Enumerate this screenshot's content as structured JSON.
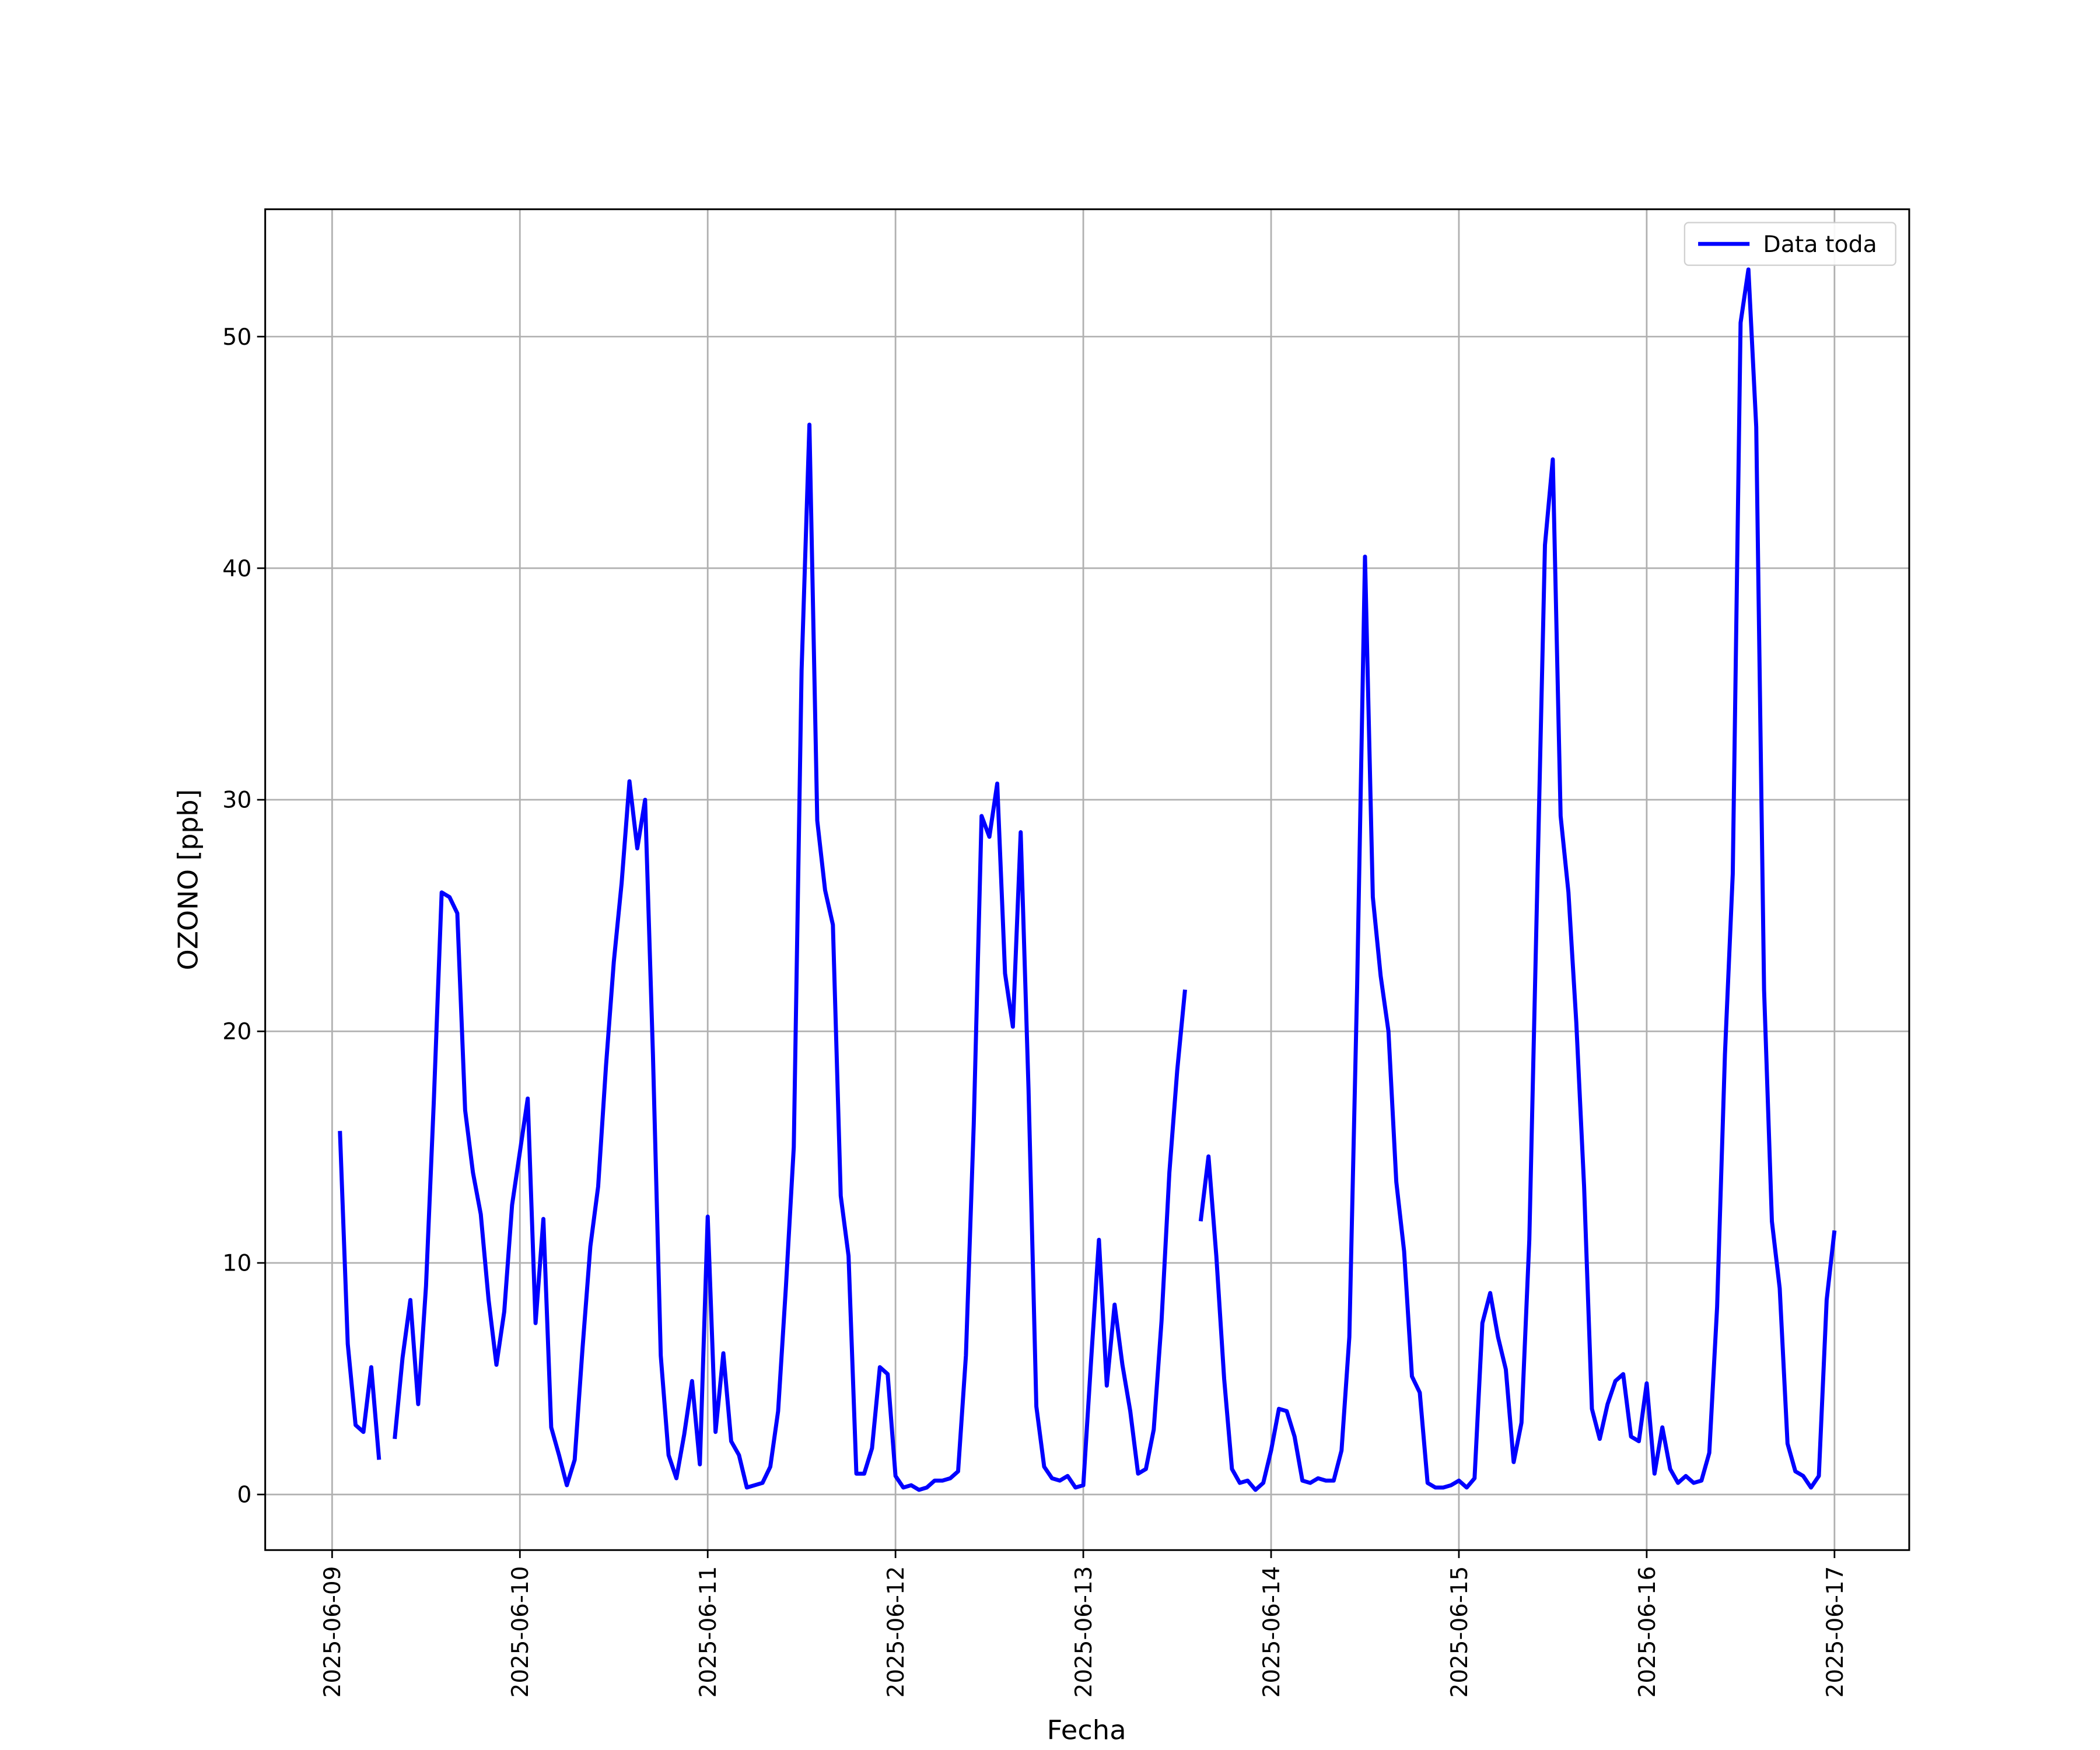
{
  "chart_data": {
    "type": "line",
    "xlabel": "Fecha",
    "ylabel": "OZONO [ppb]",
    "legend": "upper right",
    "grid": true,
    "xlim": [
      "2025-06-08 15:27",
      "2025-06-17 09:33"
    ],
    "xticks": [
      "2025-06-09",
      "2025-06-10",
      "2025-06-11",
      "2025-06-12",
      "2025-06-13",
      "2025-06-14",
      "2025-06-15",
      "2025-06-16",
      "2025-06-17"
    ],
    "ylim": [
      -2.4,
      55.5
    ],
    "yticks": [
      0,
      10,
      20,
      30,
      40,
      50
    ],
    "x": [
      "2025-06-09 01:00",
      "2025-06-09 02:00",
      "2025-06-09 03:00",
      "2025-06-09 04:00",
      "2025-06-09 05:00",
      "2025-06-09 06:00",
      "2025-06-09 07:00",
      "2025-06-09 08:00",
      "2025-06-09 09:00",
      "2025-06-09 10:00",
      "2025-06-09 11:00",
      "2025-06-09 12:00",
      "2025-06-09 13:00",
      "2025-06-09 14:00",
      "2025-06-09 15:00",
      "2025-06-09 16:00",
      "2025-06-09 17:00",
      "2025-06-09 18:00",
      "2025-06-09 19:00",
      "2025-06-09 20:00",
      "2025-06-09 21:00",
      "2025-06-09 22:00",
      "2025-06-09 23:00",
      "2025-06-10 00:00",
      "2025-06-10 01:00",
      "2025-06-10 02:00",
      "2025-06-10 03:00",
      "2025-06-10 04:00",
      "2025-06-10 05:00",
      "2025-06-10 06:00",
      "2025-06-10 07:00",
      "2025-06-10 08:00",
      "2025-06-10 09:00",
      "2025-06-10 10:00",
      "2025-06-10 11:00",
      "2025-06-10 12:00",
      "2025-06-10 13:00",
      "2025-06-10 14:00",
      "2025-06-10 15:00",
      "2025-06-10 16:00",
      "2025-06-10 17:00",
      "2025-06-10 18:00",
      "2025-06-10 19:00",
      "2025-06-10 20:00",
      "2025-06-10 21:00",
      "2025-06-10 22:00",
      "2025-06-10 23:00",
      "2025-06-11 00:00",
      "2025-06-11 01:00",
      "2025-06-11 02:00",
      "2025-06-11 03:00",
      "2025-06-11 04:00",
      "2025-06-11 05:00",
      "2025-06-11 06:00",
      "2025-06-11 07:00",
      "2025-06-11 08:00",
      "2025-06-11 09:00",
      "2025-06-11 10:00",
      "2025-06-11 11:00",
      "2025-06-11 12:00",
      "2025-06-11 13:00",
      "2025-06-11 14:00",
      "2025-06-11 15:00",
      "2025-06-11 16:00",
      "2025-06-11 17:00",
      "2025-06-11 18:00",
      "2025-06-11 19:00",
      "2025-06-11 20:00",
      "2025-06-11 21:00",
      "2025-06-11 22:00",
      "2025-06-11 23:00",
      "2025-06-12 00:00",
      "2025-06-12 01:00",
      "2025-06-12 02:00",
      "2025-06-12 03:00",
      "2025-06-12 04:00",
      "2025-06-12 05:00",
      "2025-06-12 06:00",
      "2025-06-12 07:00",
      "2025-06-12 08:00",
      "2025-06-12 09:00",
      "2025-06-12 10:00",
      "2025-06-12 11:00",
      "2025-06-12 12:00",
      "2025-06-12 13:00",
      "2025-06-12 14:00",
      "2025-06-12 15:00",
      "2025-06-12 16:00",
      "2025-06-12 17:00",
      "2025-06-12 18:00",
      "2025-06-12 19:00",
      "2025-06-12 20:00",
      "2025-06-12 21:00",
      "2025-06-12 22:00",
      "2025-06-12 23:00",
      "2025-06-13 00:00",
      "2025-06-13 01:00",
      "2025-06-13 02:00",
      "2025-06-13 03:00",
      "2025-06-13 04:00",
      "2025-06-13 05:00",
      "2025-06-13 06:00",
      "2025-06-13 07:00",
      "2025-06-13 08:00",
      "2025-06-13 09:00",
      "2025-06-13 10:00",
      "2025-06-13 11:00",
      "2025-06-13 12:00",
      "2025-06-13 13:00",
      "2025-06-13 14:00",
      "2025-06-13 15:00",
      "2025-06-13 16:00",
      "2025-06-13 17:00",
      "2025-06-13 18:00",
      "2025-06-13 19:00",
      "2025-06-13 20:00",
      "2025-06-13 21:00",
      "2025-06-13 22:00",
      "2025-06-13 23:00",
      "2025-06-14 00:00",
      "2025-06-14 01:00",
      "2025-06-14 02:00",
      "2025-06-14 03:00",
      "2025-06-14 04:00",
      "2025-06-14 05:00",
      "2025-06-14 06:00",
      "2025-06-14 07:00",
      "2025-06-14 08:00",
      "2025-06-14 09:00",
      "2025-06-14 10:00",
      "2025-06-14 11:00",
      "2025-06-14 12:00",
      "2025-06-14 13:00",
      "2025-06-14 14:00",
      "2025-06-14 15:00",
      "2025-06-14 16:00",
      "2025-06-14 17:00",
      "2025-06-14 18:00",
      "2025-06-14 19:00",
      "2025-06-14 20:00",
      "2025-06-14 21:00",
      "2025-06-14 22:00",
      "2025-06-14 23:00",
      "2025-06-15 00:00",
      "2025-06-15 01:00",
      "2025-06-15 02:00",
      "2025-06-15 03:00",
      "2025-06-15 04:00",
      "2025-06-15 05:00",
      "2025-06-15 06:00",
      "2025-06-15 07:00",
      "2025-06-15 08:00",
      "2025-06-15 09:00",
      "2025-06-15 10:00",
      "2025-06-15 11:00",
      "2025-06-15 12:00",
      "2025-06-15 13:00",
      "2025-06-15 14:00",
      "2025-06-15 15:00",
      "2025-06-15 16:00",
      "2025-06-15 17:00",
      "2025-06-15 18:00",
      "2025-06-15 19:00",
      "2025-06-15 20:00",
      "2025-06-15 21:00",
      "2025-06-15 22:00",
      "2025-06-15 23:00",
      "2025-06-16 00:00",
      "2025-06-16 01:00",
      "2025-06-16 02:00",
      "2025-06-16 03:00",
      "2025-06-16 04:00",
      "2025-06-16 05:00",
      "2025-06-16 06:00",
      "2025-06-16 07:00",
      "2025-06-16 08:00",
      "2025-06-16 09:00",
      "2025-06-16 10:00",
      "2025-06-16 11:00",
      "2025-06-16 12:00",
      "2025-06-16 13:00",
      "2025-06-16 14:00",
      "2025-06-16 15:00",
      "2025-06-16 16:00",
      "2025-06-16 17:00",
      "2025-06-16 18:00",
      "2025-06-16 19:00",
      "2025-06-16 20:00",
      "2025-06-16 21:00",
      "2025-06-16 22:00",
      "2025-06-16 23:00",
      "2025-06-17 00:00"
    ],
    "series": [
      {
        "name": "Data toda",
        "color": "#0000ff",
        "values": [
          15.7,
          6.5,
          3.0,
          2.7,
          5.5,
          1.5,
          null,
          2.4,
          5.9,
          8.4,
          3.9,
          9.0,
          17.0,
          26.0,
          25.8,
          25.1,
          16.6,
          13.9,
          12.1,
          8.4,
          5.6,
          7.9,
          12.5,
          14.8,
          17.1,
          7.4,
          11.9,
          2.9,
          1.7,
          0.4,
          1.5,
          6.3,
          10.7,
          13.3,
          18.5,
          23.0,
          26.4,
          30.8,
          27.9,
          30.0,
          19.0,
          6.0,
          1.7,
          0.7,
          2.6,
          4.9,
          1.3,
          12.0,
          2.7,
          6.1,
          2.3,
          1.7,
          0.3,
          0.4,
          0.5,
          1.2,
          3.6,
          9.0,
          15.0,
          35.6,
          46.2,
          29.1,
          26.1,
          24.6,
          12.9,
          10.3,
          0.9,
          0.9,
          2.0,
          5.5,
          5.2,
          0.8,
          0.3,
          0.4,
          0.2,
          0.3,
          0.6,
          0.6,
          0.7,
          1.0,
          6.0,
          16.0,
          29.3,
          28.4,
          30.7,
          22.5,
          20.2,
          28.6,
          17.5,
          3.8,
          1.2,
          0.7,
          0.6,
          0.8,
          0.3,
          0.4,
          5.8,
          11.0,
          4.7,
          8.2,
          5.6,
          3.6,
          0.9,
          1.1,
          2.8,
          7.5,
          13.9,
          18.3,
          21.8,
          null,
          11.8,
          14.6,
          10.3,
          5.0,
          1.1,
          0.5,
          0.6,
          0.2,
          0.5,
          1.9,
          3.7,
          3.6,
          2.5,
          0.6,
          0.5,
          0.7,
          0.6,
          0.6,
          1.9,
          6.8,
          22.0,
          40.5,
          25.8,
          22.4,
          20.0,
          13.5,
          10.5,
          5.1,
          4.4,
          0.5,
          0.3,
          0.3,
          0.4,
          0.6,
          0.3,
          0.7,
          7.4,
          8.7,
          6.8,
          5.4,
          1.4,
          3.1,
          11.0,
          26.0,
          41.0,
          44.7,
          29.3,
          26.0,
          20.4,
          13.3,
          3.7,
          2.4,
          3.9,
          4.9,
          5.2,
          2.5,
          2.3,
          4.8,
          0.9,
          2.9,
          1.1,
          0.5,
          0.8,
          0.5,
          0.6,
          1.8,
          8.1,
          19.0,
          26.8,
          50.6,
          52.9,
          46.1,
          21.8,
          11.8,
          8.9,
          2.2,
          1.0,
          0.8,
          0.3,
          0.8,
          8.4,
          11.4
        ]
      }
    ]
  }
}
